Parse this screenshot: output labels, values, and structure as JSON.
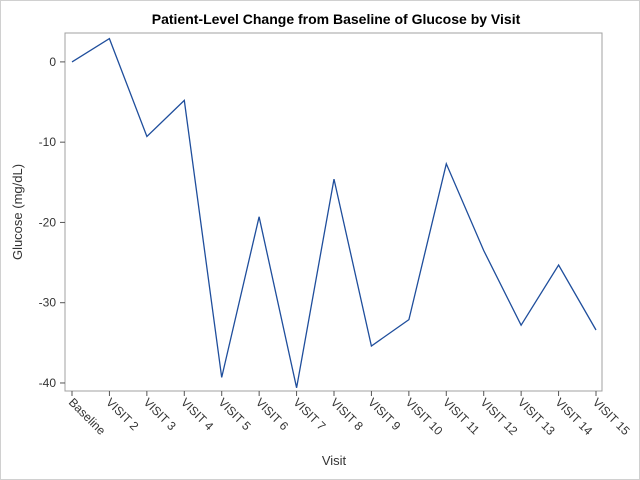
{
  "chart_data": {
    "type": "line",
    "title": "Patient-Level Change from Baseline of Glucose by Visit",
    "xlabel": "Visit",
    "ylabel": "Glucose (mg/dL)",
    "categories": [
      "Baseline",
      "VISIT 2",
      "VISIT 3",
      "VISIT 4",
      "VISIT 5",
      "VISIT 6",
      "VISIT 7",
      "VISIT 8",
      "VISIT 9",
      "VISIT 10",
      "VISIT 11",
      "VISIT 12",
      "VISIT 13",
      "VISIT 14",
      "VISIT 15"
    ],
    "series": [
      {
        "values": [
          0,
          2.9,
          -9.3,
          -4.8,
          -39.3,
          -19.3,
          -40.6,
          -14.6,
          -35.4,
          -32.1,
          -12.7,
          -23.5,
          -32.8,
          -25.3,
          -33.4
        ],
        "color": "#1f4e9c"
      }
    ],
    "ylim": [
      -41,
      3.6
    ],
    "yticks": [
      0,
      -10,
      -20,
      -30,
      -40
    ],
    "grid": false,
    "legend": "none"
  }
}
